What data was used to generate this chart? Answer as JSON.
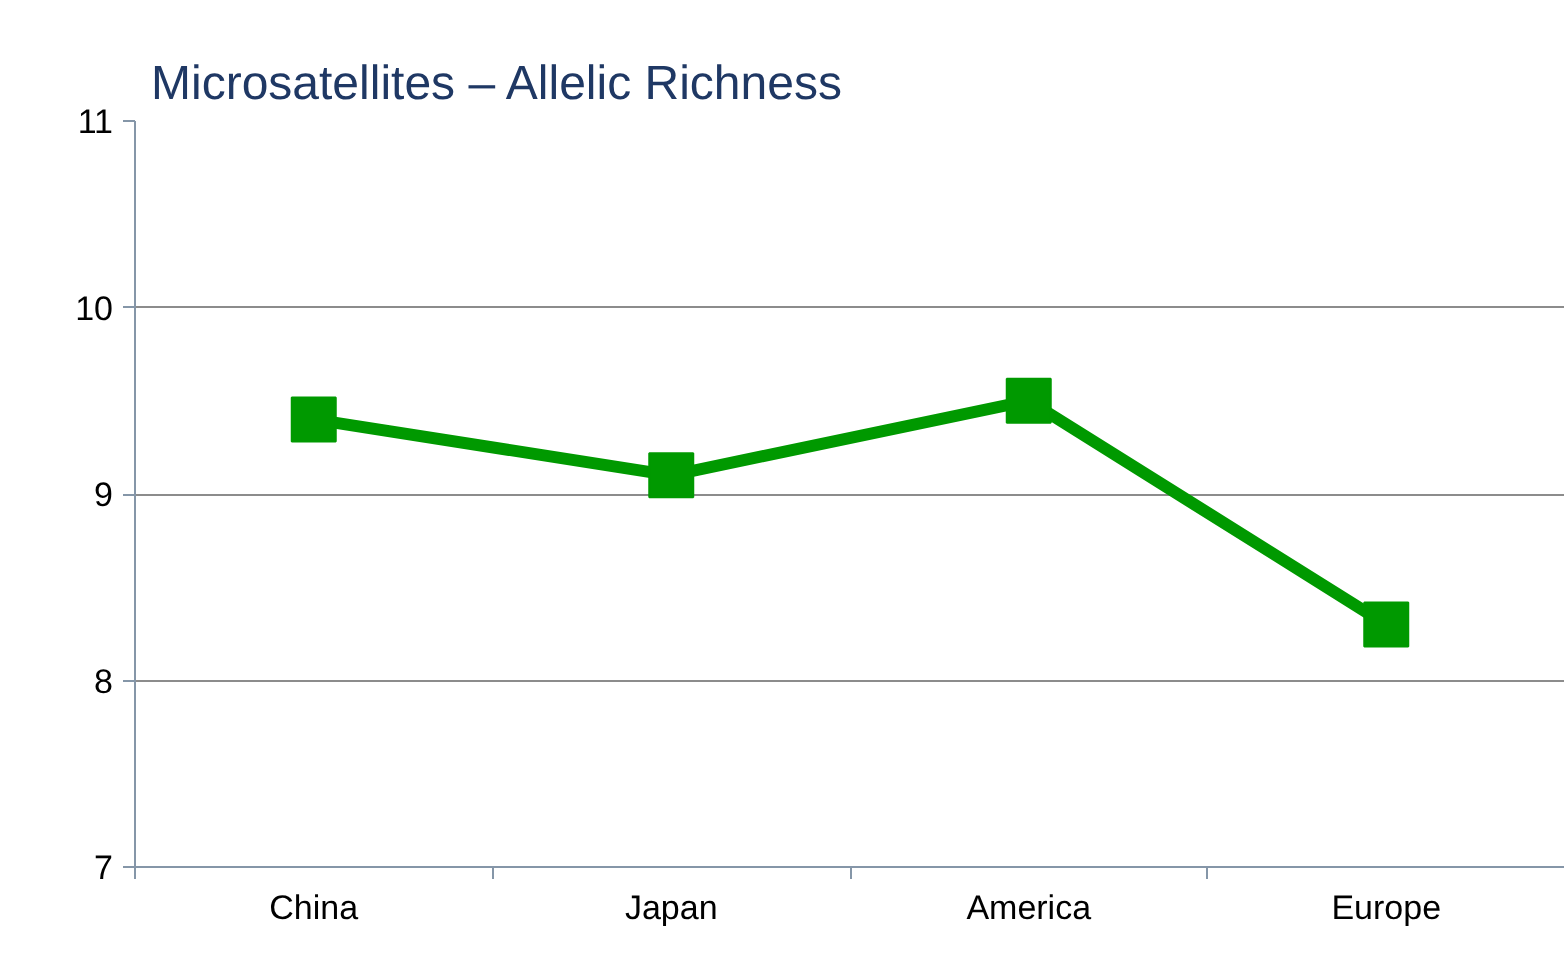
{
  "chart_data": {
    "type": "line",
    "title": "Microsatellites – Allelic Richness",
    "categories": [
      "China",
      "Japan",
      "America",
      "Europe"
    ],
    "series": [
      {
        "color": "#009900",
        "values": [
          9.4,
          9.1,
          9.5,
          8.3
        ]
      }
    ],
    "ylim": [
      7,
      11
    ],
    "yticks": [
      7,
      8,
      9,
      10,
      11
    ],
    "grid": "y",
    "marker": "square",
    "line_style": "solid"
  }
}
